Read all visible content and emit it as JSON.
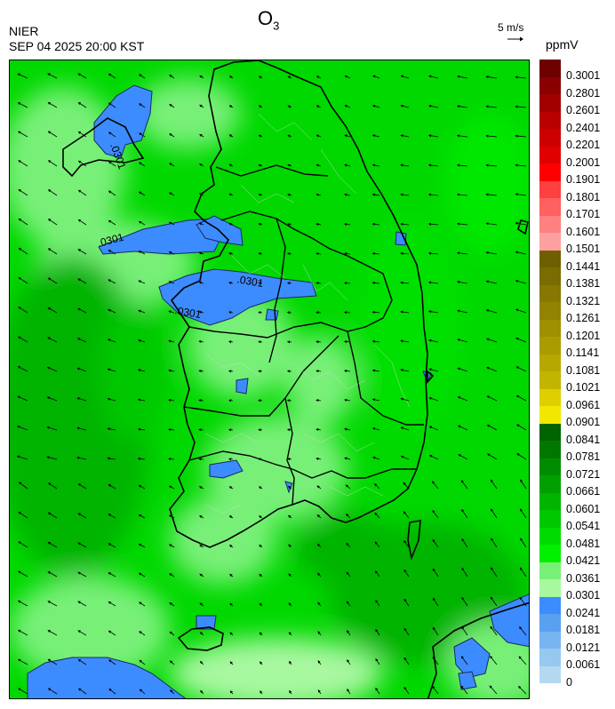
{
  "header": {
    "title_main": "O",
    "title_sub": "3",
    "agency": "NIER",
    "datetime": "SEP 04 2025 20:00 KST",
    "wind_ref_label": "5 m/s",
    "unit": "ppmV"
  },
  "map": {
    "contour_labels": [
      ".0301",
      ".0301",
      ".0301",
      ".0301"
    ]
  },
  "colorbar": {
    "labels": [
      "0.3001",
      "0.2801",
      "0.2601",
      "0.2401",
      "0.2201",
      "0.2001",
      "0.1901",
      "0.1801",
      "0.1701",
      "0.1601",
      "0.1501",
      "0.1441",
      "0.1381",
      "0.1321",
      "0.1261",
      "0.1201",
      "0.1141",
      "0.1081",
      "0.1021",
      "0.0961",
      "0.0901",
      "0.0841",
      "0.0781",
      "0.0721",
      "0.0661",
      "0.0601",
      "0.0541",
      "0.0481",
      "0.0421",
      "0.0361",
      "0.0301",
      "0.0241",
      "0.0181",
      "0.0121",
      "0.0061",
      "0"
    ],
    "colors": [
      "#6e0000",
      "#8a0000",
      "#a20000",
      "#b80000",
      "#cc0000",
      "#e00000",
      "#ff0000",
      "#ff4040",
      "#ff6060",
      "#ff8080",
      "#ffa0a0",
      "#6e6000",
      "#7a6c00",
      "#867800",
      "#928400",
      "#9e9000",
      "#aa9c00",
      "#b6a800",
      "#c2b400",
      "#ded000",
      "#f0e800",
      "#006400",
      "#007800",
      "#008c00",
      "#00a000",
      "#00b400",
      "#00c800",
      "#00dc00",
      "#00f000",
      "#78f078",
      "#a8f8a0",
      "#3c8cff",
      "#5aa0f0",
      "#78b4f0",
      "#96c8f0",
      "#b4d8f0"
    ]
  },
  "palette": {
    "green_dark": "#00b400",
    "green_mid": "#00d800",
    "green_light": "#78f078",
    "green_pale": "#a8f8a0",
    "blue": "#3c8cff",
    "outline": "#000000"
  }
}
